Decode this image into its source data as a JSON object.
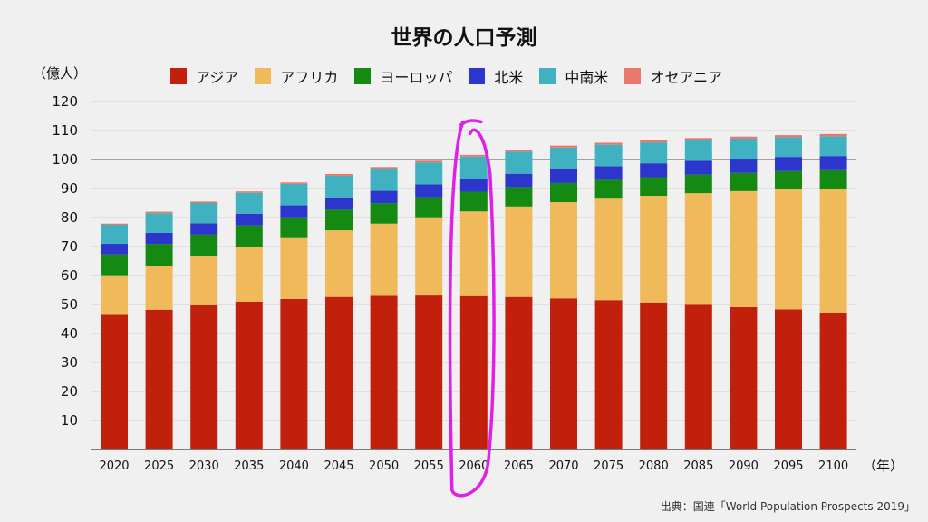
{
  "chart_data": {
    "type": "bar",
    "stacked": true,
    "title": "世界の人口予測",
    "ylabel": "（億人）",
    "xunit": "（年）",
    "source": "出典：国連「World Population Prospects 2019」",
    "ylim": [
      0,
      120
    ],
    "yticks": [
      10,
      20,
      30,
      40,
      50,
      60,
      70,
      80,
      90,
      100,
      110,
      120
    ],
    "grid": true,
    "legend_position": "top",
    "reference_line": 100,
    "categories": [
      "2020",
      "2025",
      "2030",
      "2035",
      "2040",
      "2045",
      "2050",
      "2055",
      "2060",
      "2065",
      "2070",
      "2075",
      "2080",
      "2085",
      "2090",
      "2095",
      "2100"
    ],
    "series": [
      {
        "name": "アジア",
        "color": "#c0200c",
        "values": [
          46.4,
          48.2,
          49.7,
          51.0,
          51.9,
          52.6,
          53.0,
          53.1,
          52.9,
          52.6,
          52.1,
          51.5,
          50.7,
          49.9,
          49.1,
          48.3,
          47.2
        ]
      },
      {
        "name": "アフリカ",
        "color": "#f0b95a",
        "values": [
          13.4,
          15.2,
          17.0,
          19.0,
          21.0,
          23.0,
          24.9,
          27.0,
          29.2,
          31.2,
          33.2,
          35.0,
          36.8,
          38.5,
          40.0,
          41.4,
          42.8
        ]
      },
      {
        "name": "ヨーロッパ",
        "color": "#148a12",
        "values": [
          7.5,
          7.5,
          7.4,
          7.3,
          7.2,
          7.1,
          7.0,
          6.9,
          6.8,
          6.7,
          6.6,
          6.5,
          6.4,
          6.4,
          6.3,
          6.3,
          6.3
        ]
      },
      {
        "name": "北米",
        "color": "#2c35cc",
        "values": [
          3.7,
          3.8,
          3.9,
          4.0,
          4.1,
          4.2,
          4.3,
          4.4,
          4.5,
          4.6,
          4.7,
          4.7,
          4.8,
          4.8,
          4.9,
          4.9,
          4.9
        ]
      },
      {
        "name": "中南米",
        "color": "#40b1c1",
        "values": [
          6.5,
          6.8,
          7.0,
          7.2,
          7.4,
          7.5,
          7.6,
          7.6,
          7.6,
          7.6,
          7.5,
          7.4,
          7.2,
          7.1,
          6.9,
          6.8,
          6.8
        ]
      },
      {
        "name": "オセアニア",
        "color": "#e8796a",
        "values": [
          0.4,
          0.5,
          0.5,
          0.5,
          0.5,
          0.6,
          0.6,
          0.6,
          0.6,
          0.7,
          0.7,
          0.7,
          0.7,
          0.7,
          0.7,
          0.7,
          0.8
        ]
      }
    ],
    "annotation": {
      "type": "hand-drawn-ellipse",
      "color": "#e020e8",
      "target_category": "2060"
    }
  }
}
